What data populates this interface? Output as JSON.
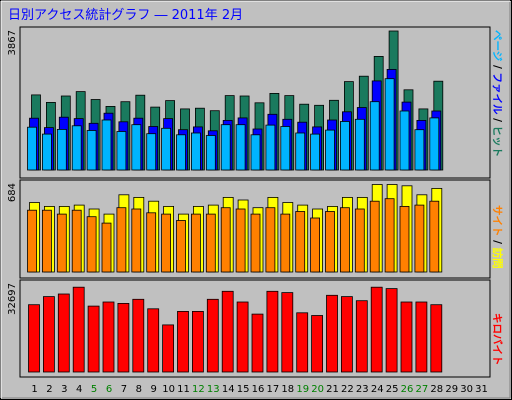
{
  "chart_data": {
    "type": "bar",
    "title": "日別アクセス統計グラフ ―  2011年 2月",
    "categories": [
      "1",
      "2",
      "3",
      "4",
      "5",
      "6",
      "7",
      "8",
      "9",
      "10",
      "11",
      "12",
      "13",
      "14",
      "15",
      "16",
      "17",
      "18",
      "19",
      "20",
      "21",
      "22",
      "23",
      "24",
      "25",
      "26",
      "27",
      "28",
      "29",
      "30",
      "31"
    ],
    "weekend_days": [
      "5",
      "6",
      "12",
      "13",
      "19",
      "20",
      "26",
      "27"
    ],
    "days_in_month": 28,
    "panels": {
      "page_file_hits": {
        "scale_label": "3867",
        "ymax": 3867,
        "side_label": "ページ / ファイル / ヒット",
        "side_label_parts": [
          "ページ",
          " / ",
          "ファイル",
          " / ",
          "ヒット"
        ],
        "series": [
          {
            "name": "ヒット",
            "color": "#1a7a5e",
            "values": [
              2090,
              1880,
              2060,
              2180,
              1960,
              1770,
              1900,
              2080,
              1750,
              1930,
              1700,
              1720,
              1650,
              2070,
              2060,
              1870,
              2130,
              2070,
              1830,
              1800,
              1940,
              2460,
              2610,
              3160,
              3867,
              2230,
              1700,
              2470
            ]
          },
          {
            "name": "ファイル",
            "color": "#0000ff",
            "values": [
              1440,
              1180,
              1470,
              1430,
              1300,
              1580,
              1340,
              1440,
              1210,
              1430,
              1120,
              1200,
              1090,
              1380,
              1450,
              1140,
              1550,
              1410,
              1330,
              1200,
              1390,
              1620,
              1740,
              2480,
              2800,
              1890,
              1380,
              1640
            ]
          },
          {
            "name": "ページ",
            "color": "#00b4ff",
            "values": [
              1190,
              1000,
              1130,
              1230,
              1100,
              1390,
              1070,
              1260,
              1010,
              1160,
              980,
              1030,
              960,
              1260,
              1260,
              980,
              1250,
              1210,
              1030,
              1000,
              1110,
              1350,
              1410,
              1900,
              2540,
              1640,
              1120,
              1450
            ]
          }
        ]
      },
      "sites_kbytes_top": {
        "scale_label": "684",
        "ymax": 684,
        "side_label": "サイト / 訪問",
        "side_label_parts": [
          "サイト",
          " / ",
          "訪問"
        ],
        "series": [
          {
            "name": "訪問",
            "color": "#ffff00",
            "values": [
              540,
              510,
              510,
              520,
              490,
              450,
              600,
              580,
              550,
              510,
              450,
              510,
              520,
              580,
              560,
              500,
              580,
              540,
              520,
              490,
              510,
              580,
              580,
              680,
              680,
              670,
              600,
              650
            ]
          },
          {
            "name": "サイト",
            "color": "#ff8000",
            "values": [
              480,
              480,
              450,
              480,
              430,
              380,
              500,
              490,
              460,
              450,
              400,
              450,
              450,
              500,
              490,
              450,
              500,
              450,
              470,
              420,
              470,
              500,
              490,
              550,
              570,
              510,
              520,
              550
            ]
          }
        ]
      },
      "kbytes": {
        "scale_label": "32697",
        "ymax": 32697,
        "side_label": "キロバイト",
        "series": [
          {
            "name": "キロバイト",
            "color": "#ff0000",
            "values": [
              25000,
              28000,
              29000,
              31500,
              24500,
              26000,
              25500,
              27000,
              23500,
              17500,
              22500,
              22500,
              27000,
              30000,
              26000,
              21500,
              30000,
              29500,
              22000,
              21000,
              28500,
              28000,
              26500,
              31500,
              31000,
              26000,
              26000,
              25000
            ]
          }
        ]
      }
    }
  }
}
